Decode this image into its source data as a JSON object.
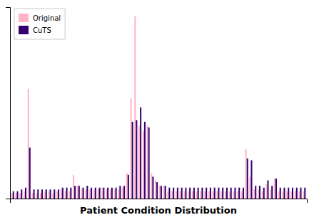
{
  "chart_data": {
    "type": "bar",
    "xlabel": "Patient Condition Distribution",
    "categories": [
      null,
      null,
      null,
      null,
      null,
      null,
      null,
      null,
      null,
      null,
      null,
      null,
      null,
      null,
      null,
      null,
      null,
      null,
      null,
      null,
      null,
      null,
      null,
      null,
      null,
      null,
      null,
      null,
      null,
      null,
      null,
      null,
      null,
      null,
      null,
      null,
      null,
      null,
      null,
      null,
      null,
      null,
      null,
      null,
      null,
      null,
      null,
      null,
      null,
      null,
      null,
      null,
      null,
      null,
      null,
      null,
      null,
      null,
      null,
      null,
      null,
      null,
      null,
      null,
      null,
      null,
      null,
      null,
      null,
      null,
      null,
      null
    ],
    "series": [
      {
        "name": "Original",
        "color": "#FFB3C6",
        "values": [
          0.03,
          0.03,
          0.03,
          0.04,
          0.6,
          0.03,
          0.03,
          0.03,
          0.04,
          0.04,
          0.03,
          0.04,
          0.05,
          0.04,
          0.04,
          0.13,
          0.07,
          0.05,
          0.05,
          0.05,
          0.05,
          0.05,
          0.06,
          0.05,
          0.05,
          0.05,
          0.05,
          0.06,
          0.14,
          0.55,
          1.0,
          0.4,
          0.37,
          0.4,
          0.14,
          0.1,
          0.07,
          0.07,
          0.04,
          0.04,
          0.04,
          0.04,
          0.04,
          0.04,
          0.04,
          0.04,
          0.04,
          0.04,
          0.04,
          0.04,
          0.04,
          0.04,
          0.04,
          0.04,
          0.04,
          0.04,
          0.04,
          0.27,
          0.12,
          0.05,
          0.05,
          0.04,
          0.08,
          0.05,
          0.11,
          0.04,
          0.04,
          0.04,
          0.04,
          0.04,
          0.04,
          0.04
        ]
      },
      {
        "name": "CuTS",
        "color": "#35006E",
        "values": [
          0.04,
          0.04,
          0.05,
          0.06,
          0.28,
          0.05,
          0.05,
          0.05,
          0.05,
          0.05,
          0.05,
          0.05,
          0.06,
          0.06,
          0.06,
          0.07,
          0.07,
          0.06,
          0.07,
          0.06,
          0.06,
          0.06,
          0.06,
          0.06,
          0.06,
          0.06,
          0.07,
          0.07,
          0.13,
          0.42,
          0.43,
          0.5,
          0.42,
          0.39,
          0.12,
          0.09,
          0.07,
          0.07,
          0.06,
          0.06,
          0.06,
          0.06,
          0.06,
          0.06,
          0.06,
          0.06,
          0.06,
          0.06,
          0.06,
          0.06,
          0.06,
          0.06,
          0.06,
          0.06,
          0.06,
          0.06,
          0.06,
          0.22,
          0.21,
          0.07,
          0.07,
          0.06,
          0.1,
          0.07,
          0.11,
          0.06,
          0.06,
          0.06,
          0.06,
          0.06,
          0.06,
          0.06
        ]
      }
    ],
    "ylim": [
      0,
      1.05
    ],
    "tick_labels": false,
    "grid": false,
    "legend": "upper-left"
  }
}
